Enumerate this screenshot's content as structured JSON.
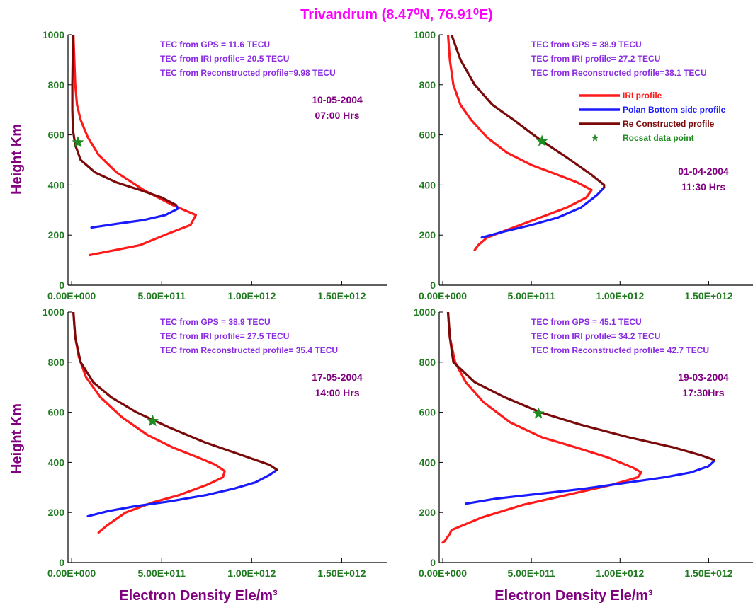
{
  "figure": {
    "title": "Trivandrum (8.47⁰N, 76.91⁰E)",
    "ylabel": "Height Km",
    "xlabel": "Electron Density Ele/m³"
  },
  "colors": {
    "iri": "#ff1a1a",
    "polan": "#1a1aff",
    "reconstructed": "#7a0a0a",
    "rocsat": "#1f8a1f",
    "tick": "#1f7a1f",
    "annotation": "#8a2be2",
    "date": "#800080",
    "title": "#ff00ff"
  },
  "legend": [
    {
      "key": "iri",
      "label": "IRI profile",
      "marker": "line"
    },
    {
      "key": "polan",
      "label": "Polan Bottom side profile",
      "marker": "line"
    },
    {
      "key": "reconstructed",
      "label": "Re Constructed profile",
      "marker": "line"
    },
    {
      "key": "rocsat",
      "label": "Rocsat data point",
      "marker": "star"
    }
  ],
  "chart_data": [
    {
      "type": "line",
      "panel": "top-left",
      "xlim": [
        -20000000000.0,
        1750000000000.0
      ],
      "ylim": [
        0,
        1000
      ],
      "xticks": [
        0,
        500000000000.0,
        1000000000000.0,
        1500000000000.0
      ],
      "xtick_labels": [
        "0.00E+000",
        "5.00E+011",
        "1.00E+012",
        "1.50E+012"
      ],
      "yticks": [
        0,
        200,
        400,
        600,
        800,
        1000
      ],
      "ytick_labels": [
        "0",
        "200",
        "400",
        "600",
        "800",
        "1000"
      ],
      "annotations": [
        "TEC from GPS = 11.6 TECU",
        "TEC from IRI profile= 20.5 TECU",
        "TEC from Reconstructed profile=9.98 TECU"
      ],
      "date": "10-05-2004",
      "time": "07:00 Hrs",
      "series": [
        {
          "key": "iri",
          "points": [
            [
              10000000000.0,
              1000
            ],
            [
              15000000000.0,
              900
            ],
            [
              20000000000.0,
              800
            ],
            [
              30000000000.0,
              720
            ],
            [
              50000000000.0,
              660
            ],
            [
              90000000000.0,
              590
            ],
            [
              150000000000.0,
              520
            ],
            [
              250000000000.0,
              450
            ],
            [
              400000000000.0,
              380
            ],
            [
              560000000000.0,
              320
            ],
            [
              690000000000.0,
              280
            ],
            [
              660000000000.0,
              240
            ],
            [
              550000000000.0,
              210
            ],
            [
              380000000000.0,
              160
            ],
            [
              100000000000.0,
              120
            ]
          ]
        },
        {
          "key": "polan",
          "points": [
            [
              110000000000.0,
              230
            ],
            [
              250000000000.0,
              245
            ],
            [
              400000000000.0,
              260
            ],
            [
              520000000000.0,
              280
            ],
            [
              590000000000.0,
              305
            ],
            [
              580000000000.0,
              320
            ]
          ]
        },
        {
          "key": "reconstructed",
          "points": [
            [
              10000000000.0,
              1000
            ],
            [
              6000000000.0,
              900
            ],
            [
              4000000000.0,
              800
            ],
            [
              4000000000.0,
              700
            ],
            [
              7000000000.0,
              620
            ],
            [
              20000000000.0,
              560
            ],
            [
              50000000000.0,
              500
            ],
            [
              130000000000.0,
              450
            ],
            [
              250000000000.0,
              410
            ],
            [
              380000000000.0,
              380
            ],
            [
              500000000000.0,
              350
            ],
            [
              580000000000.0,
              320
            ]
          ]
        },
        {
          "key": "rocsat",
          "points": [
            [
              35000000000.0,
              570
            ]
          ]
        }
      ]
    },
    {
      "type": "line",
      "panel": "top-right",
      "xlim": [
        -20000000000.0,
        1750000000000.0
      ],
      "ylim": [
        0,
        1000
      ],
      "xticks": [
        0,
        500000000000.0,
        1000000000000.0,
        1500000000000.0
      ],
      "xtick_labels": [
        "0.00E+000",
        "5.00E+011",
        "1.00E+012",
        "1.50E+012"
      ],
      "yticks": [
        0,
        200,
        400,
        600,
        800,
        1000
      ],
      "ytick_labels": [
        "0",
        "200",
        "400",
        "600",
        "800",
        "1000"
      ],
      "annotations": [
        "TEC from GPS = 38.9 TECU",
        "TEC from IRI profile= 27.2 TECU",
        "TEC from Reconstructed profile=38.1 TECU"
      ],
      "date": "01-04-2004",
      "time": "11:30 Hrs",
      "series": [
        {
          "key": "iri",
          "points": [
            [
              30000000000.0,
              1000
            ],
            [
              40000000000.0,
              900
            ],
            [
              60000000000.0,
              800
            ],
            [
              100000000000.0,
              720
            ],
            [
              160000000000.0,
              660
            ],
            [
              250000000000.0,
              590
            ],
            [
              360000000000.0,
              530
            ],
            [
              500000000000.0,
              480
            ],
            [
              650000000000.0,
              440
            ],
            [
              760000000000.0,
              410
            ],
            [
              840000000000.0,
              380
            ],
            [
              810000000000.0,
              350
            ],
            [
              700000000000.0,
              310
            ],
            [
              550000000000.0,
              270
            ],
            [
              360000000000.0,
              220
            ],
            [
              250000000000.0,
              190
            ],
            [
              200000000000.0,
              160
            ],
            [
              180000000000.0,
              140
            ]
          ]
        },
        {
          "key": "polan",
          "points": [
            [
              220000000000.0,
              190
            ],
            [
              350000000000.0,
              215
            ],
            [
              500000000000.0,
              240
            ],
            [
              650000000000.0,
              270
            ],
            [
              780000000000.0,
              310
            ],
            [
              870000000000.0,
              360
            ],
            [
              910000000000.0,
              390
            ]
          ]
        },
        {
          "key": "reconstructed",
          "points": [
            [
              50000000000.0,
              1000
            ],
            [
              100000000000.0,
              900
            ],
            [
              180000000000.0,
              800
            ],
            [
              280000000000.0,
              720
            ],
            [
              400000000000.0,
              660
            ],
            [
              550000000000.0,
              580
            ],
            [
              700000000000.0,
              510
            ],
            [
              840000000000.0,
              440
            ],
            [
              910000000000.0,
              400
            ],
            [
              910000000000.0,
              390
            ]
          ]
        },
        {
          "key": "rocsat",
          "points": [
            [
              560000000000.0,
              575
            ]
          ]
        }
      ]
    },
    {
      "type": "line",
      "panel": "bottom-left",
      "xlim": [
        -20000000000.0,
        1750000000000.0
      ],
      "ylim": [
        0,
        1000
      ],
      "xticks": [
        0,
        500000000000.0,
        1000000000000.0,
        1500000000000.0
      ],
      "xtick_labels": [
        "0.00E+000",
        "5.00E+011",
        "1.00E+012",
        "1.50E+012"
      ],
      "yticks": [
        0,
        200,
        400,
        600,
        800,
        1000
      ],
      "ytick_labels": [
        "0",
        "200",
        "400",
        "600",
        "800",
        "1000"
      ],
      "annotations": [
        "TEC from GPS = 38.9 TECU",
        "TEC from IRI profile= 27.5 TECU",
        "TEC from Reconstructed profile= 35.4 TECU"
      ],
      "date": "17-05-2004",
      "time": "14:00 Hrs",
      "series": [
        {
          "key": "iri",
          "points": [
            [
              10000000000.0,
              1000
            ],
            [
              20000000000.0,
              900
            ],
            [
              40000000000.0,
              820
            ],
            [
              80000000000.0,
              740
            ],
            [
              160000000000.0,
              660
            ],
            [
              280000000000.0,
              580
            ],
            [
              420000000000.0,
              510
            ],
            [
              560000000000.0,
              460
            ],
            [
              700000000000.0,
              420
            ],
            [
              800000000000.0,
              390
            ],
            [
              850000000000.0,
              365
            ],
            [
              840000000000.0,
              340
            ],
            [
              750000000000.0,
              310
            ],
            [
              600000000000.0,
              270
            ],
            [
              450000000000.0,
              240
            ],
            [
              300000000000.0,
              200
            ],
            [
              200000000000.0,
              150
            ],
            [
              150000000000.0,
              120
            ]
          ]
        },
        {
          "key": "polan",
          "points": [
            [
              90000000000.0,
              185
            ],
            [
              200000000000.0,
              205
            ],
            [
              350000000000.0,
              225
            ],
            [
              550000000000.0,
              245
            ],
            [
              750000000000.0,
              270
            ],
            [
              900000000000.0,
              295
            ],
            [
              1020000000000.0,
              320
            ],
            [
              1100000000000.0,
              350
            ],
            [
              1140000000000.0,
              370
            ]
          ]
        },
        {
          "key": "reconstructed",
          "points": [
            [
              10000000000.0,
              1000
            ],
            [
              20000000000.0,
              900
            ],
            [
              50000000000.0,
              800
            ],
            [
              120000000000.0,
              720
            ],
            [
              220000000000.0,
              660
            ],
            [
              360000000000.0,
              600
            ],
            [
              540000000000.0,
              540
            ],
            [
              740000000000.0,
              480
            ],
            [
              940000000000.0,
              430
            ],
            [
              1100000000000.0,
              390
            ],
            [
              1140000000000.0,
              370
            ]
          ]
        },
        {
          "key": "rocsat",
          "points": [
            [
              450000000000.0,
              565
            ]
          ]
        }
      ]
    },
    {
      "type": "line",
      "panel": "bottom-right",
      "xlim": [
        -20000000000.0,
        1750000000000.0
      ],
      "ylim": [
        0,
        1000
      ],
      "xticks": [
        0,
        500000000000.0,
        1000000000000.0,
        1500000000000.0
      ],
      "xtick_labels": [
        "0.00E+000",
        "5.00E+011",
        "1.00E+012",
        "1.50E+012"
      ],
      "yticks": [
        0,
        200,
        400,
        600,
        800,
        1000
      ],
      "ytick_labels": [
        "0",
        "200",
        "400",
        "600",
        "800",
        "1000"
      ],
      "annotations": [
        "TEC from GPS = 45.1 TECU",
        "TEC from IRI profile= 34.2 TECU",
        "TEC from Reconstructed profile= 42.7 TECU"
      ],
      "date": "19-03-2004",
      "time": "17:30Hrs",
      "series": [
        {
          "key": "iri",
          "points": [
            [
              30000000000.0,
              1000
            ],
            [
              40000000000.0,
              900
            ],
            [
              70000000000.0,
              800
            ],
            [
              130000000000.0,
              720
            ],
            [
              230000000000.0,
              640
            ],
            [
              380000000000.0,
              560
            ],
            [
              560000000000.0,
              500
            ],
            [
              750000000000.0,
              460
            ],
            [
              930000000000.0,
              420
            ],
            [
              1070000000000.0,
              380
            ],
            [
              1120000000000.0,
              360
            ],
            [
              1100000000000.0,
              340
            ],
            [
              950000000000.0,
              310
            ],
            [
              700000000000.0,
              270
            ],
            [
              450000000000.0,
              230
            ],
            [
              220000000000.0,
              180
            ],
            [
              50000000000.0,
              130
            ],
            [
              40000000000.0,
              115
            ],
            [
              10000000000.0,
              85
            ],
            [
              0,
              80
            ]
          ]
        },
        {
          "key": "polan",
          "points": [
            [
              130000000000.0,
              235
            ],
            [
              300000000000.0,
              255
            ],
            [
              550000000000.0,
              275
            ],
            [
              800000000000.0,
              295
            ],
            [
              1050000000000.0,
              320
            ],
            [
              1250000000000.0,
              340
            ],
            [
              1400000000000.0,
              360
            ],
            [
              1500000000000.0,
              385
            ],
            [
              1530000000000.0,
              405
            ]
          ]
        },
        {
          "key": "reconstructed",
          "points": [
            [
              30000000000.0,
              1000
            ],
            [
              40000000000.0,
              900
            ],
            [
              60000000000.0,
              800
            ],
            [
              180000000000.0,
              720
            ],
            [
              350000000000.0,
              660
            ],
            [
              550000000000.0,
              600
            ],
            [
              780000000000.0,
              550
            ],
            [
              1050000000000.0,
              500
            ],
            [
              1300000000000.0,
              460
            ],
            [
              1450000000000.0,
              430
            ],
            [
              1530000000000.0,
              410
            ]
          ]
        },
        {
          "key": "rocsat",
          "points": [
            [
              540000000000.0,
              595
            ]
          ]
        }
      ]
    }
  ]
}
